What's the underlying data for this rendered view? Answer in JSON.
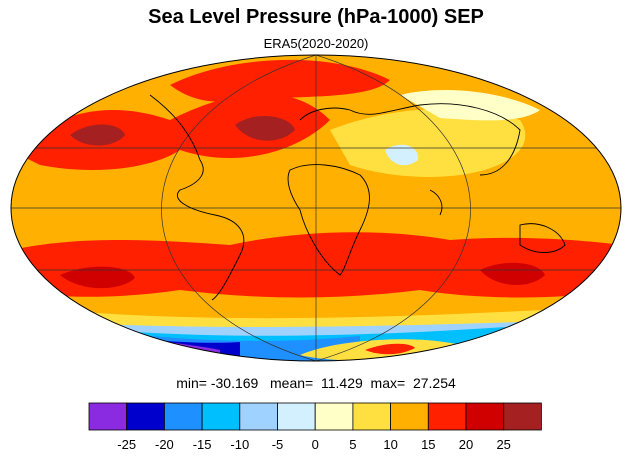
{
  "title": "Sea Level Pressure (hPa-1000) SEP",
  "subtitle": "ERA5(2020-2020)",
  "stats": {
    "min_label": "min=",
    "min": "-30.169",
    "mean_label": "mean=",
    "mean": "11.429",
    "max_label": "max=",
    "max": "27.254"
  },
  "colorbar": {
    "colors": [
      "#8a2be2",
      "#0000cd",
      "#1e90ff",
      "#00bfff",
      "#a0d2ff",
      "#d2f0ff",
      "#ffffc8",
      "#ffe040",
      "#ffb000",
      "#ff2000",
      "#d00000",
      "#a52020"
    ],
    "ticks": [
      "-25",
      "-20",
      "-15",
      "-10",
      "-5",
      "0",
      "5",
      "10",
      "15",
      "20",
      "25"
    ]
  },
  "map": {
    "projection": "Mollweide",
    "colors": {
      "ocean_high": "#ffb000",
      "high_band": "#ff2000",
      "very_high": "#d00000",
      "extreme": "#a52020",
      "mid": "#ffe040",
      "low_land": "#ffffc8",
      "very_low": "#d2f0ff",
      "cold_1": "#a0d2ff",
      "cold_2": "#00bfff",
      "cold_3": "#1e90ff",
      "cold_4": "#0000cd",
      "cold_5": "#8a2be2",
      "coast": "#000000",
      "grid": "#333333"
    }
  }
}
